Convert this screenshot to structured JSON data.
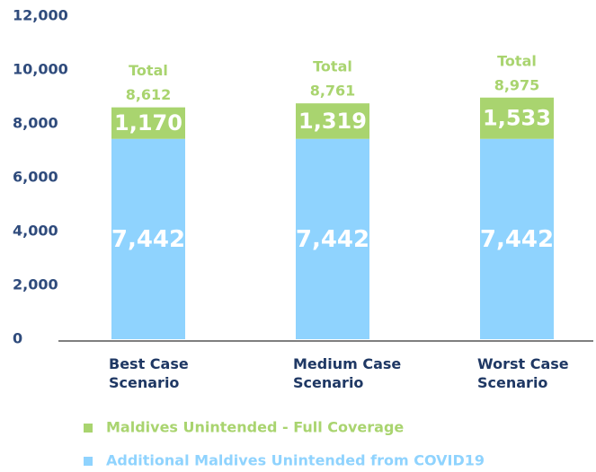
{
  "chart_data": {
    "type": "stacked-bar",
    "categories": [
      "Best Case Scenario",
      "Medium Case Scenario",
      "Worst Case Scenario"
    ],
    "series": [
      {
        "name": "Additional Maldives Unintended from COVID19",
        "color": "#8fd3fe",
        "values": [
          7442,
          7442,
          7442
        ],
        "value_labels": [
          "7,442",
          "7,442",
          "7,442"
        ]
      },
      {
        "name": "Maldives Unintended - Full Coverage",
        "color": "#a9d46f",
        "values": [
          1170,
          1319,
          1533
        ],
        "value_labels": [
          "1,170",
          "1,319",
          "1,533"
        ]
      }
    ],
    "totals": [
      {
        "caption": "Total",
        "label": "8,612"
      },
      {
        "caption": "Total",
        "label": "8,761"
      },
      {
        "caption": "Total",
        "label": "8,975"
      }
    ],
    "ylim": [
      0,
      12000
    ],
    "yticks": [
      0,
      {
        "value": 2000,
        "label": "2,000"
      },
      {
        "value": 4000,
        "label": "4,000"
      },
      {
        "value": 6000,
        "label": "6,000"
      },
      {
        "value": 8000,
        "label": "8,000"
      },
      {
        "value": 10000,
        "label": "10,000"
      },
      {
        "value": 12000,
        "label": "12,000"
      }
    ]
  }
}
